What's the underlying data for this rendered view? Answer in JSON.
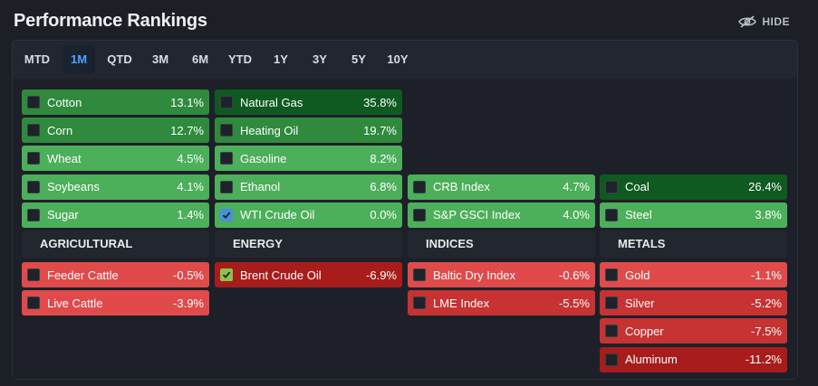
{
  "header": {
    "title": "Performance Rankings",
    "hide_label": "HIDE",
    "hide_icon": "eye-slash-icon"
  },
  "tabs": [
    {
      "label": "MTD",
      "active": false
    },
    {
      "label": "1M",
      "active": true
    },
    {
      "label": "QTD",
      "active": false
    },
    {
      "label": "3M",
      "active": false
    },
    {
      "label": "6M",
      "active": false
    },
    {
      "label": "YTD",
      "active": false
    },
    {
      "label": "1Y",
      "active": false
    },
    {
      "label": "3Y",
      "active": false
    },
    {
      "label": "5Y",
      "active": false
    },
    {
      "label": "10Y",
      "active": false
    }
  ],
  "colors": {
    "active_tab": "#4ea1ff",
    "green_dark": "#0f5a21",
    "green_mid": "#2f8a3e",
    "green_light": "#4caf5a",
    "red_light": "#e04a4a",
    "red_mid": "#c73232",
    "red_dark": "#a81c1c"
  },
  "columns": [
    {
      "category": "AGRICULTURAL",
      "gainers": [
        {
          "name": "Cotton",
          "pct": "13.1%",
          "checked": false,
          "tone": "green_mid"
        },
        {
          "name": "Corn",
          "pct": "12.7%",
          "checked": false,
          "tone": "green_mid"
        },
        {
          "name": "Wheat",
          "pct": "4.5%",
          "checked": false,
          "tone": "green_light"
        },
        {
          "name": "Soybeans",
          "pct": "4.1%",
          "checked": false,
          "tone": "green_light"
        },
        {
          "name": "Sugar",
          "pct": "1.4%",
          "checked": false,
          "tone": "green_light"
        }
      ],
      "losers": [
        {
          "name": "Feeder Cattle",
          "pct": "-0.5%",
          "checked": false,
          "tone": "red_light"
        },
        {
          "name": "Live Cattle",
          "pct": "-3.9%",
          "checked": false,
          "tone": "red_light"
        }
      ]
    },
    {
      "category": "ENERGY",
      "gainers": [
        {
          "name": "Natural Gas",
          "pct": "35.8%",
          "checked": false,
          "tone": "green_dark"
        },
        {
          "name": "Heating Oil",
          "pct": "19.7%",
          "checked": false,
          "tone": "green_mid"
        },
        {
          "name": "Gasoline",
          "pct": "8.2%",
          "checked": false,
          "tone": "green_light"
        },
        {
          "name": "Ethanol",
          "pct": "6.8%",
          "checked": false,
          "tone": "green_light"
        },
        {
          "name": "WTI Crude Oil",
          "pct": "0.0%",
          "checked": true,
          "tone": "green_light"
        }
      ],
      "losers": [
        {
          "name": "Brent Crude Oil",
          "pct": "-6.9%",
          "checked": true,
          "tone": "red_dark"
        }
      ]
    },
    {
      "category": "INDICES",
      "gainers": [
        {
          "name": "CRB Index",
          "pct": "4.7%",
          "checked": false,
          "tone": "green_light"
        },
        {
          "name": "S&P GSCI Index",
          "pct": "4.0%",
          "checked": false,
          "tone": "green_light"
        }
      ],
      "losers": [
        {
          "name": "Baltic Dry Index",
          "pct": "-0.6%",
          "checked": false,
          "tone": "red_light"
        },
        {
          "name": "LME Index",
          "pct": "-5.5%",
          "checked": false,
          "tone": "red_mid"
        }
      ]
    },
    {
      "category": "METALS",
      "gainers": [
        {
          "name": "Coal",
          "pct": "26.4%",
          "checked": false,
          "tone": "green_dark"
        },
        {
          "name": "Steel",
          "pct": "3.8%",
          "checked": false,
          "tone": "green_light"
        }
      ],
      "losers": [
        {
          "name": "Gold",
          "pct": "-1.1%",
          "checked": false,
          "tone": "red_light"
        },
        {
          "name": "Silver",
          "pct": "-5.2%",
          "checked": false,
          "tone": "red_mid"
        },
        {
          "name": "Copper",
          "pct": "-7.5%",
          "checked": false,
          "tone": "red_mid"
        },
        {
          "name": "Aluminum",
          "pct": "-11.2%",
          "checked": false,
          "tone": "red_dark"
        }
      ]
    }
  ]
}
